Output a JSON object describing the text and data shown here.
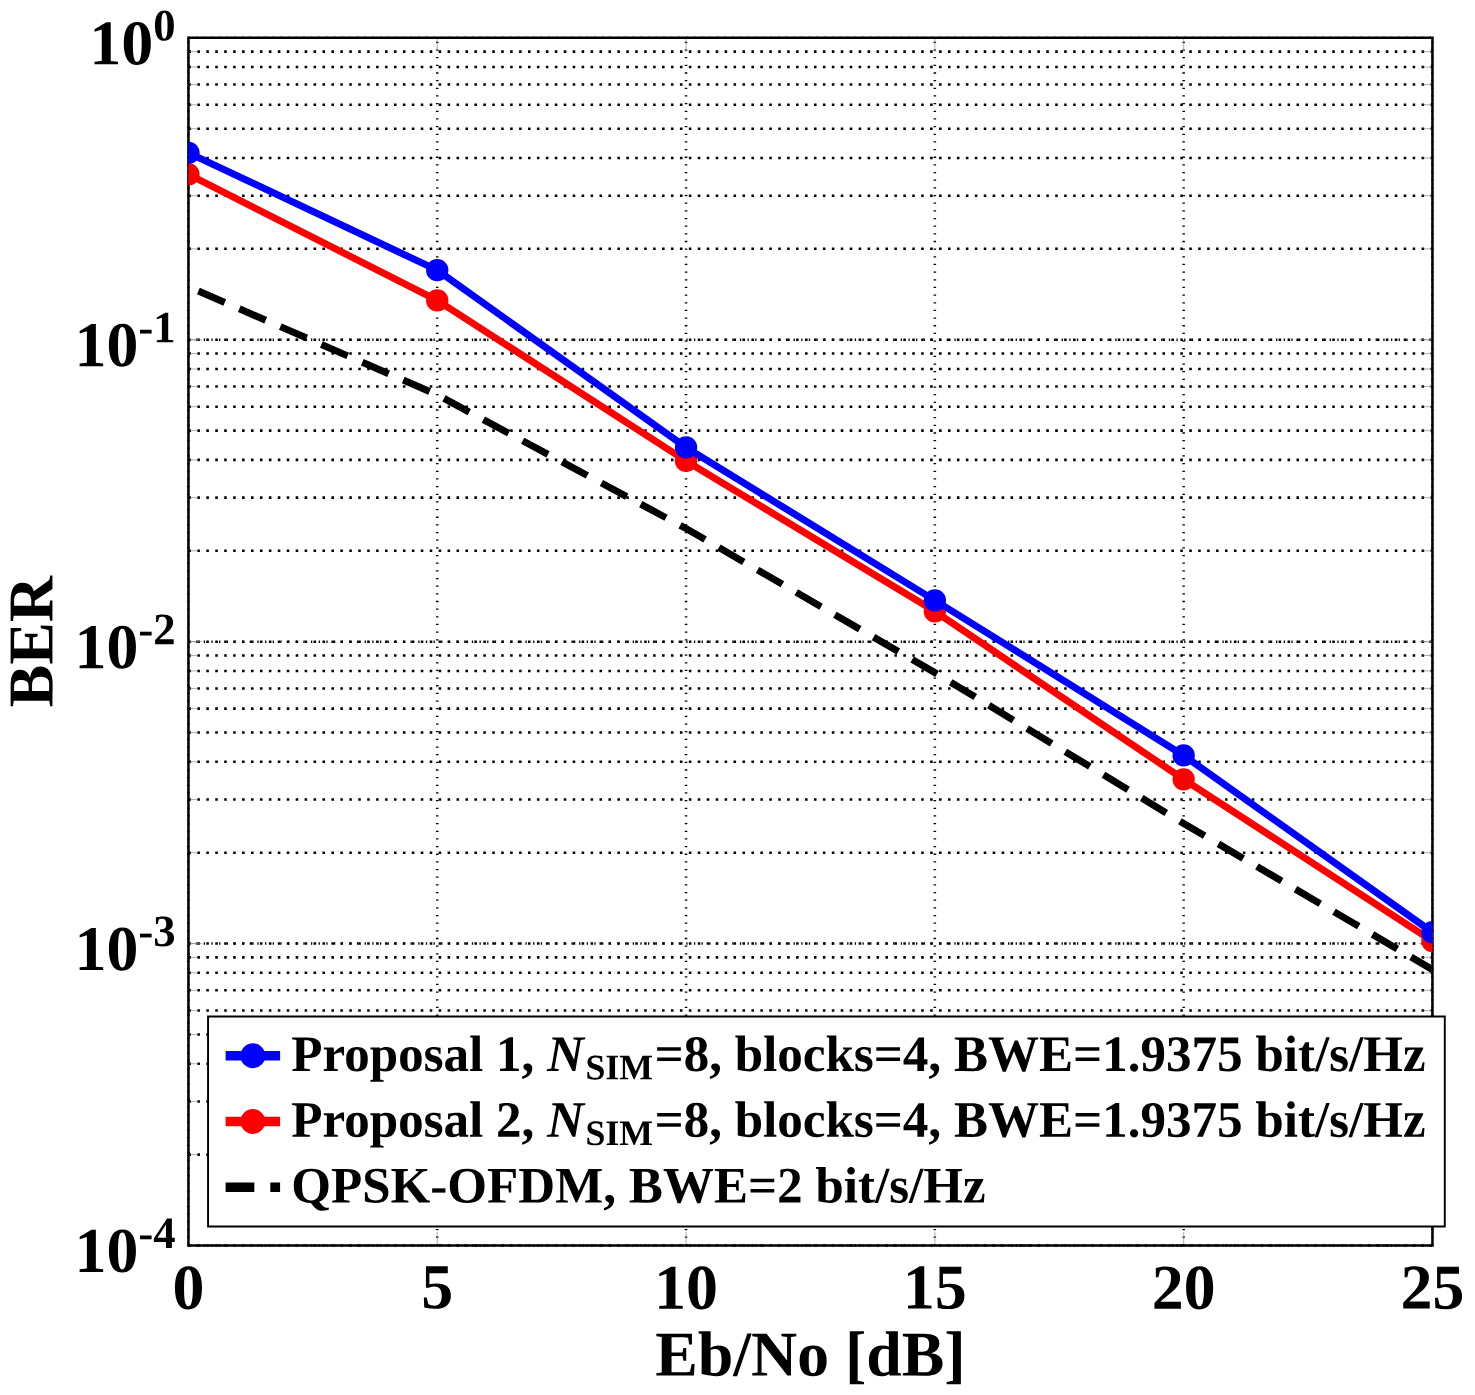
{
  "chart_data": {
    "type": "line",
    "xlabel": "Eb/No [dB]",
    "ylabel": "BER",
    "x": [
      0,
      5,
      10,
      15,
      20,
      25
    ],
    "series": [
      {
        "name": "Proposal 1, *N*$_{SIM}$=8, blocks=4, BWE=1.9375 bit/s/Hz",
        "color": "#0000ff",
        "values": [
          0.416,
          0.17,
          0.044,
          0.0137,
          0.0042,
          0.00109
        ]
      },
      {
        "name": "Proposal 2, *N*$_{SIM}$=8, blocks=4, BWE=1.9375 bit/s/Hz",
        "color": "#ff0000",
        "values": [
          0.353,
          0.135,
          0.0397,
          0.0126,
          0.0035,
          0.00102
        ]
      },
      {
        "name": "QPSK-OFDM, BWE=2 bit/s/Hz",
        "color": "#000000",
        "x": [
          0.2,
          5,
          10,
          15,
          20,
          25
        ],
        "values": [
          0.145,
          0.0657,
          0.0237,
          0.0079,
          0.0025,
          0.00082
        ],
        "marker": "none",
        "line_style": "dashed"
      }
    ],
    "log": "y",
    "xlim": [
      0,
      25
    ],
    "ylim": [
      0.0001,
      1
    ],
    "xticks": [
      0,
      5,
      10,
      15,
      20,
      25
    ],
    "yticks": [
      {
        "value": 0.0001,
        "label": "10$^{-4}$"
      },
      {
        "value": 0.001,
        "label": "10$^{-3}$"
      },
      {
        "value": 0.01,
        "label": "10$^{-2}$"
      },
      {
        "value": 0.1,
        "label": "10$^{-1}$"
      },
      {
        "value": 1,
        "label": "10$^{0}$"
      }
    ],
    "grid": true,
    "legend": "bottom left",
    "marker": "circle",
    "line_style": "solid"
  }
}
